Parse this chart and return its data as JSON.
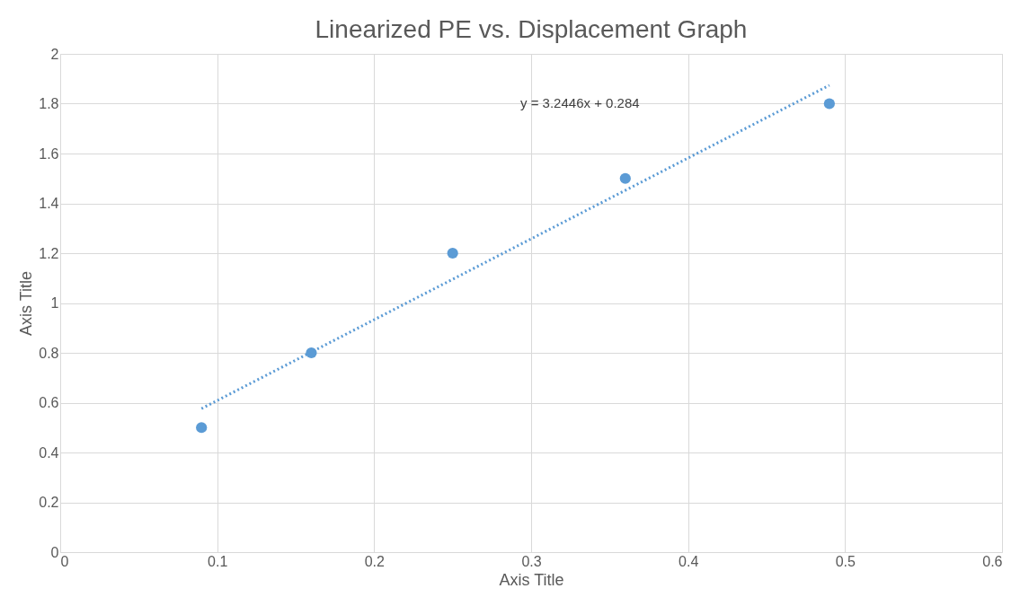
{
  "chart_data": {
    "type": "scatter",
    "title": "Linearized PE vs. Displacement Graph",
    "xlabel": "Axis Title",
    "ylabel": "Axis Title",
    "x": [
      0.09,
      0.16,
      0.25,
      0.36,
      0.49
    ],
    "series": [
      {
        "color": "#5b9bd5",
        "values": [
          0.5,
          0.8,
          1.2,
          1.5,
          1.8
        ]
      },
      {
        "type": "line",
        "color": "#5b9bd5",
        "x": [
          0.09,
          0.49
        ],
        "values": [
          0.576,
          1.874
        ],
        "line_style": "dotted",
        "marker": "none"
      }
    ],
    "annotations": [
      "y = 3.2446x + 0.284"
    ],
    "xlim": [
      0,
      0.6
    ],
    "xticks": [
      0,
      0.1,
      0.2,
      0.3,
      0.4,
      0.5,
      0.6
    ],
    "ylim": [
      0,
      2
    ],
    "yticks": [
      0,
      0.2,
      0.4,
      0.6,
      0.8,
      1,
      1.2,
      1.4,
      1.6,
      1.8,
      2
    ],
    "grid": true,
    "marker": "circle"
  }
}
